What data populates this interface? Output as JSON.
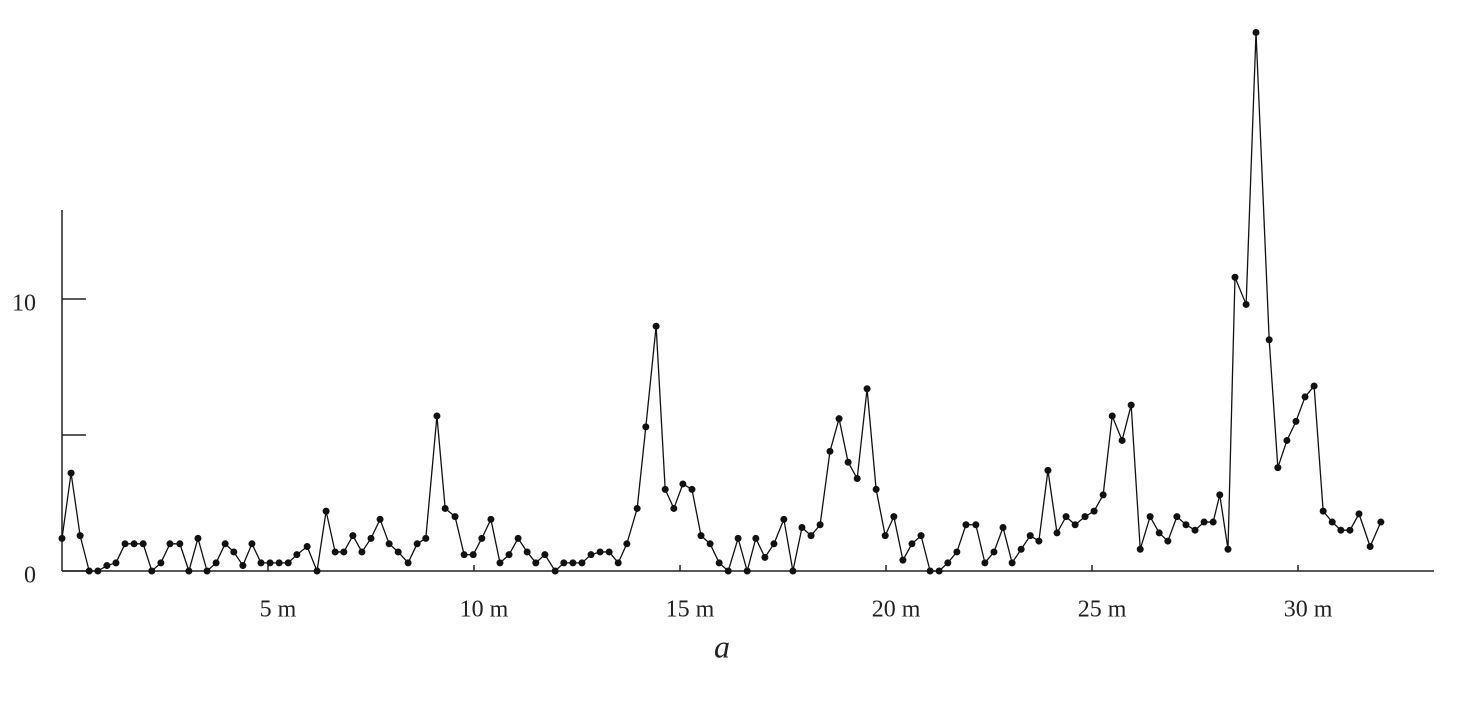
{
  "chart_data": {
    "type": "line",
    "x_label": "a",
    "x": [
      0.0,
      0.22,
      0.44,
      0.66,
      0.87,
      1.09,
      1.31,
      1.53,
      1.75,
      1.97,
      2.18,
      2.4,
      2.62,
      2.86,
      3.08,
      3.3,
      3.52,
      3.74,
      3.96,
      4.17,
      4.39,
      4.61,
      4.83,
      5.05,
      5.27,
      5.49,
      5.7,
      5.95,
      6.19,
      6.41,
      6.63,
      6.84,
      7.06,
      7.28,
      7.5,
      7.72,
      7.94,
      8.16,
      8.4,
      8.62,
      8.83,
      9.1,
      9.3,
      9.54,
      9.76,
      9.98,
      10.19,
      10.41,
      10.63,
      10.85,
      11.07,
      11.29,
      11.5,
      11.72,
      11.97,
      12.18,
      12.4,
      12.62,
      12.84,
      13.06,
      13.28,
      13.5,
      13.71,
      13.96,
      14.17,
      14.42,
      14.64,
      14.85,
      15.07,
      15.29,
      15.51,
      15.73,
      15.95,
      16.17,
      16.41,
      16.63,
      16.84,
      17.06,
      17.28,
      17.52,
      17.74,
      17.96,
      18.18,
      18.4,
      18.64,
      18.86,
      19.08,
      19.3,
      19.54,
      19.76,
      19.98,
      20.19,
      20.41,
      20.63,
      20.85,
      21.07,
      21.29,
      21.5,
      21.72,
      21.94,
      22.18,
      22.4,
      22.62,
      22.84,
      23.06,
      23.28,
      23.5,
      23.71,
      23.93,
      24.15,
      24.37,
      24.59,
      24.83,
      25.05,
      25.27,
      25.49,
      25.73,
      25.95,
      26.17,
      26.41,
      26.63,
      26.84,
      27.06,
      27.28,
      27.5,
      27.72,
      27.94,
      28.1,
      28.3,
      28.47,
      28.74,
      28.98,
      29.3,
      29.51,
      29.73,
      29.95,
      30.17,
      30.39,
      30.61,
      30.83,
      31.04,
      31.26,
      31.48,
      31.75,
      32.01
    ],
    "values": [
      1.2,
      3.6,
      1.3,
      0,
      0,
      0.2,
      0.3,
      1.0,
      1.0,
      1.0,
      0,
      0.3,
      1.0,
      1.0,
      0,
      1.2,
      0,
      0.3,
      1.0,
      0.7,
      0.2,
      1.0,
      0.3,
      0.3,
      0.3,
      0.3,
      0.6,
      0.9,
      0,
      2.2,
      0.7,
      0.7,
      1.3,
      0.7,
      1.2,
      1.9,
      1.0,
      0.7,
      0.3,
      1.0,
      1.2,
      5.7,
      2.3,
      2.0,
      0.6,
      0.6,
      1.2,
      1.9,
      0.3,
      0.6,
      1.2,
      0.7,
      0.3,
      0.6,
      0,
      0.3,
      0.3,
      0.3,
      0.6,
      0.7,
      0.7,
      0.3,
      1.0,
      2.3,
      5.3,
      9.0,
      3.0,
      2.3,
      3.2,
      3.0,
      1.3,
      1.0,
      0.3,
      0,
      1.2,
      0,
      1.2,
      0.5,
      1.0,
      1.9,
      0,
      1.6,
      1.3,
      1.7,
      4.4,
      5.6,
      4.0,
      3.4,
      6.7,
      3.0,
      1.3,
      2.0,
      0.4,
      1.0,
      1.3,
      0,
      0,
      0.3,
      0.7,
      1.7,
      1.7,
      0.3,
      0.7,
      1.6,
      0.3,
      0.8,
      1.3,
      1.1,
      3.7,
      1.4,
      2.0,
      1.7,
      2.0,
      2.2,
      2.8,
      5.7,
      4.8,
      6.1,
      0.8,
      2.0,
      1.4,
      1.1,
      2.0,
      1.7,
      1.5,
      1.8,
      1.8,
      2.8,
      0.8,
      10.8,
      9.8,
      19.8,
      8.5,
      3.8,
      4.8,
      5.5,
      6.4,
      6.8,
      2.2,
      1.8,
      1.5,
      1.5,
      2.1,
      0.9,
      1.8
    ],
    "color": "#111111",
    "xlim": [
      0,
      33.3
    ],
    "xticks": [
      {
        "value": 5,
        "label": "5 m"
      },
      {
        "value": 10,
        "label": "10 m"
      },
      {
        "value": 15,
        "label": "15 m"
      },
      {
        "value": 20,
        "label": "20 m"
      },
      {
        "value": 25,
        "label": "25 m"
      },
      {
        "value": 30,
        "label": "30 m"
      }
    ],
    "ylim": [
      0,
      20
    ],
    "yticks": [
      0,
      10
    ],
    "minor_yticks": [
      5
    ],
    "grid": false
  }
}
